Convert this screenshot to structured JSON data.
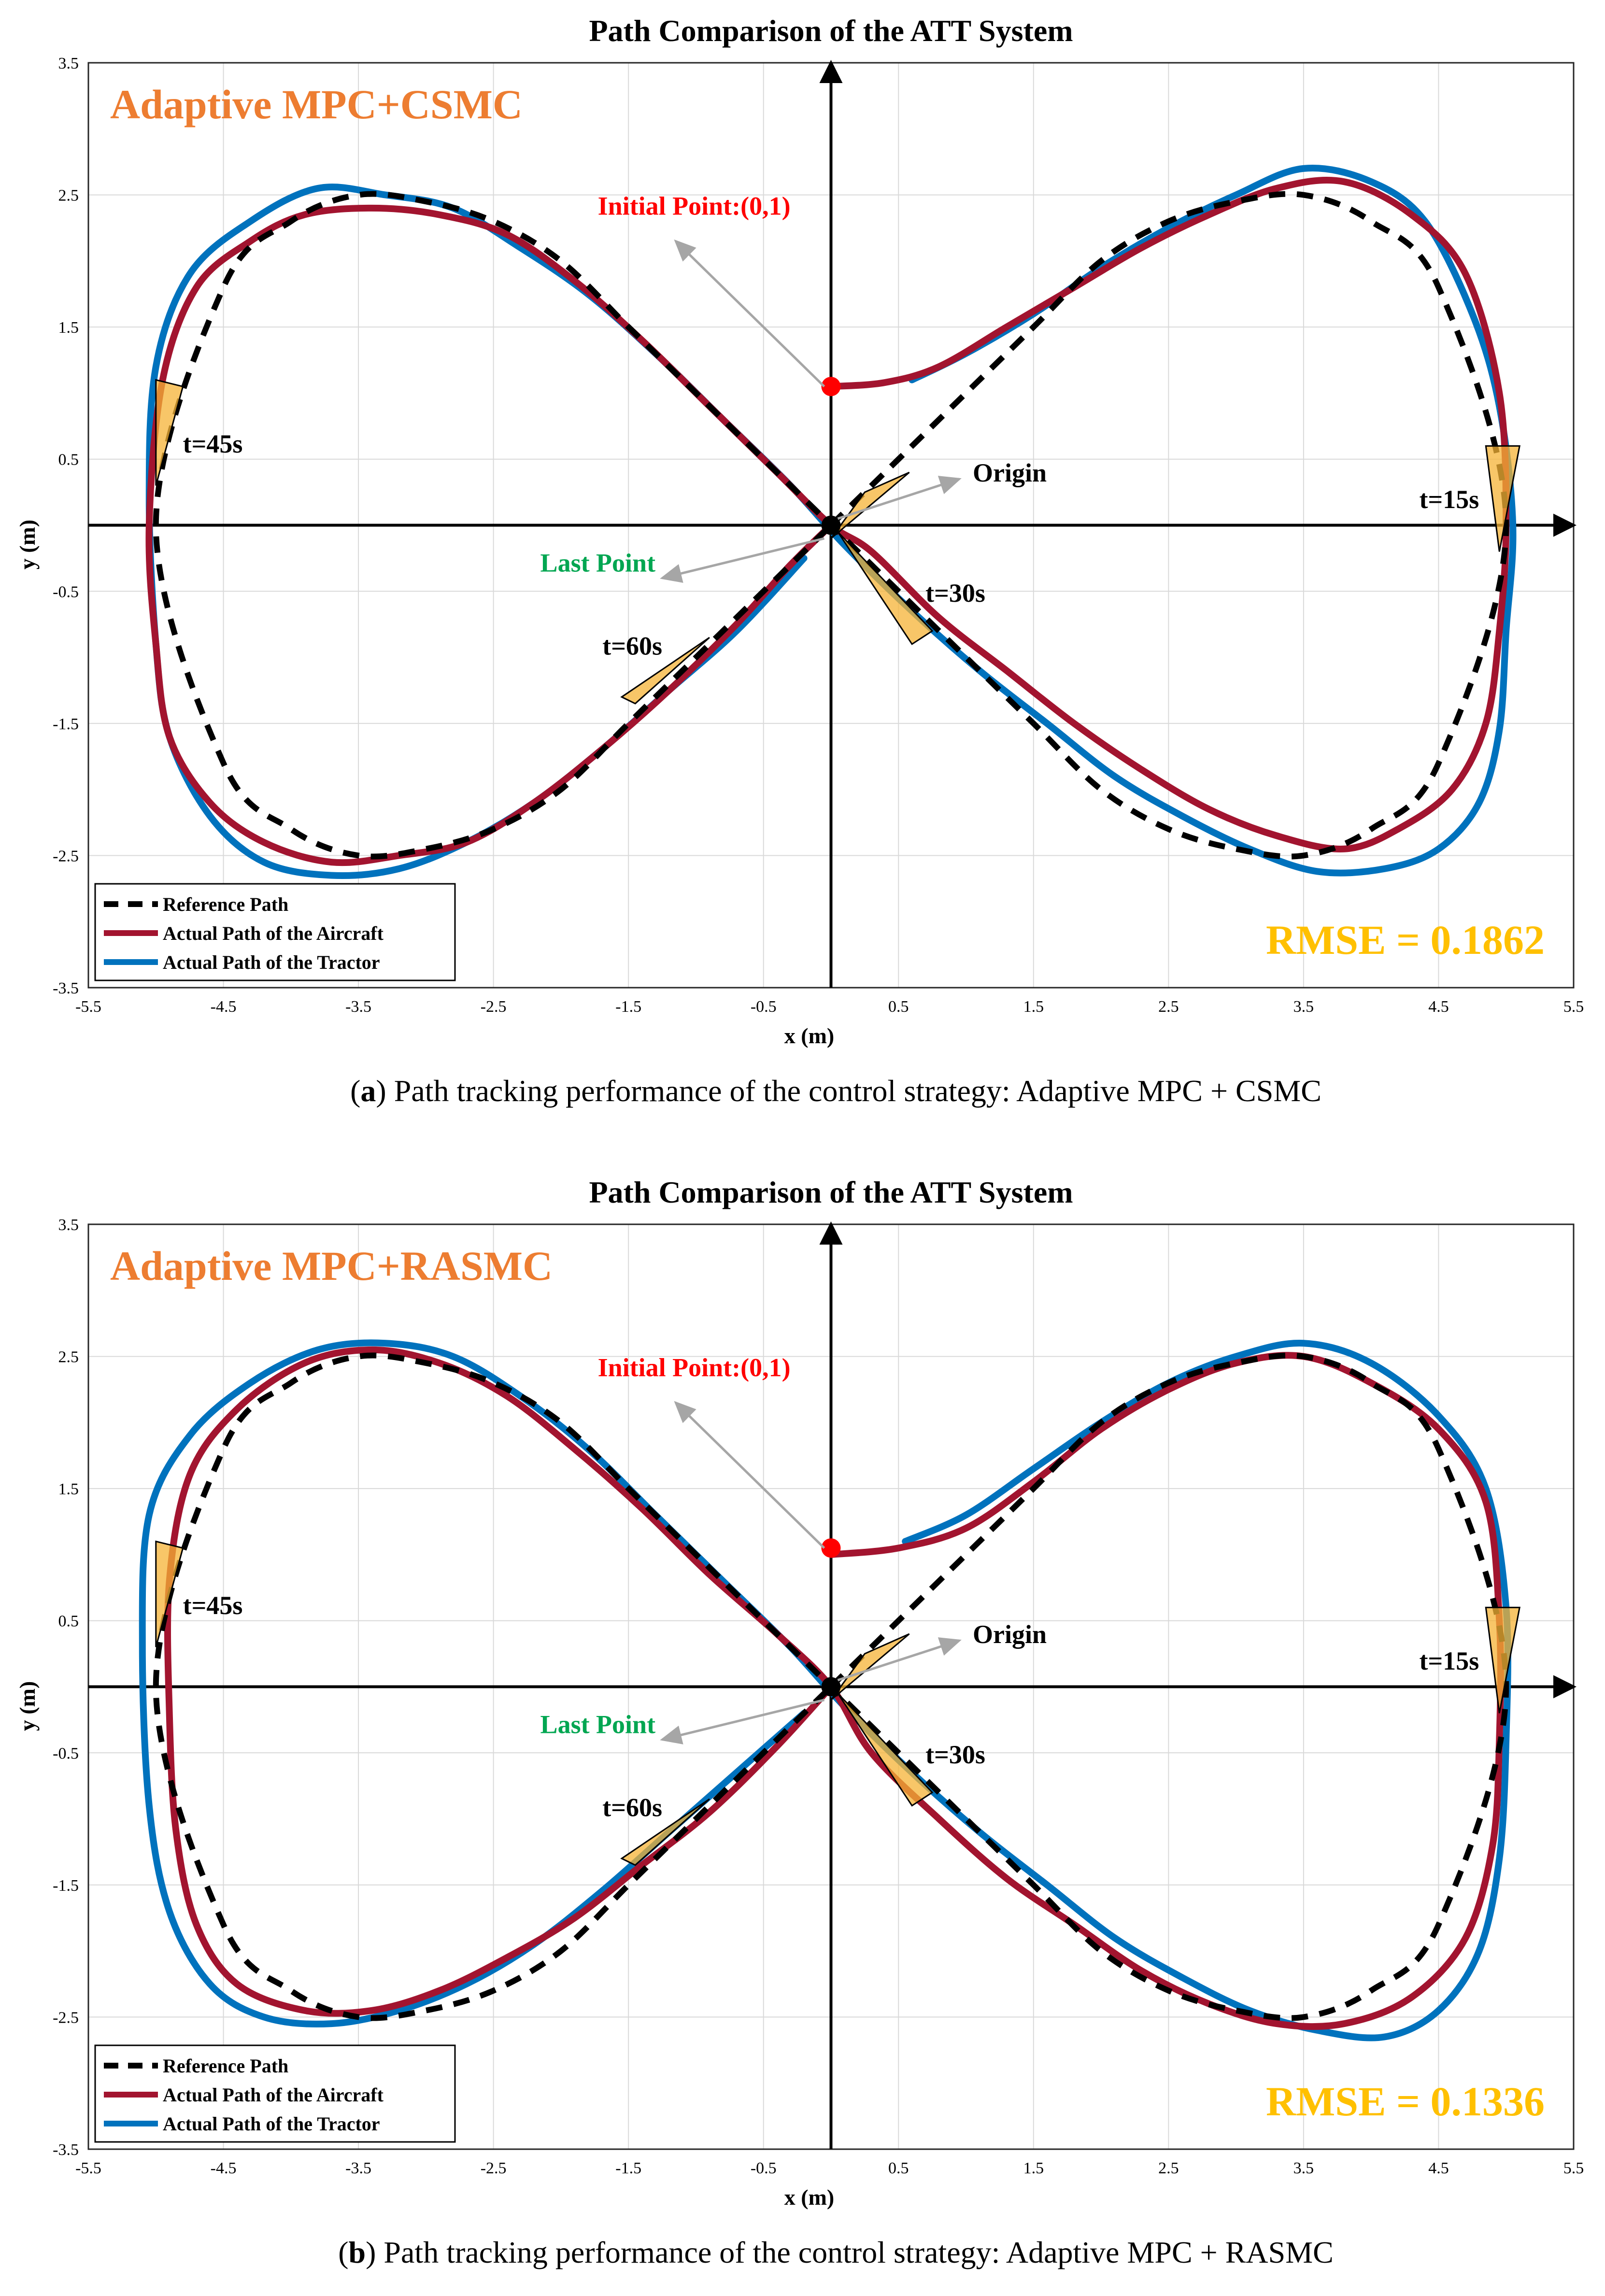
{
  "figure": {
    "colors": {
      "reference": "#000000",
      "aircraft": "#A2142F",
      "tractor": "#0072BD",
      "method_label": "#ED7D31",
      "rmse": "#FFC000",
      "initial_point": "#FF0000",
      "last_point": "#00A651",
      "origin_label": "#000000",
      "arrow": "#A6A6A6",
      "grid": "#D9D9D9",
      "trailer": "#F5B335"
    }
  },
  "chart_data": [
    {
      "type": "line",
      "title": "Path Comparison of the ATT System",
      "xlabel": "x (m)",
      "ylabel": "y (m)",
      "xlim": [
        -5.5,
        5.5
      ],
      "ylim": [
        -3.5,
        3.5
      ],
      "xticks": [
        -5.5,
        -4.5,
        -3.5,
        -2.5,
        -1.5,
        -0.5,
        0.5,
        1.5,
        2.5,
        3.5,
        4.5,
        5.5
      ],
      "yticks": [
        3.5,
        2.5,
        1.5,
        0.5,
        -0.5,
        -1.5,
        -2.5,
        -3.5
      ],
      "grid": true,
      "legend_position": "bottom-left",
      "method_label": "Adaptive MPC+CSMC",
      "rmse_label": "RMSE = 0.1862",
      "caption_tag": "a",
      "caption_text": " Path tracking performance of the control strategy: Adaptive MPC + CSMC",
      "series": [
        {
          "name": "Reference Path",
          "style": "dashed",
          "x": [
            0,
            0.5,
            1,
            1.5,
            2,
            2.5,
            3,
            3.5,
            4,
            4.5,
            5,
            4.5,
            4,
            3.5,
            3,
            2.5,
            2,
            1.5,
            1,
            0.5,
            0,
            -0.5,
            -1,
            -1.5,
            -2,
            -2.5,
            -3,
            -3.5,
            -4,
            -4.5,
            -5,
            -4.5,
            -4,
            -3.5,
            -3,
            -2.5,
            -2,
            -1.5,
            -1,
            -0.5,
            0
          ],
          "y": [
            0,
            0.5,
            1,
            1.5,
            2,
            2.3,
            2.45,
            2.5,
            2.3,
            1.8,
            0,
            -1.8,
            -2.3,
            -2.5,
            -2.45,
            -2.3,
            -2,
            -1.5,
            -1,
            -0.5,
            0,
            0.5,
            1,
            1.5,
            2,
            2.3,
            2.45,
            2.5,
            2.3,
            1.8,
            0,
            -1.8,
            -2.3,
            -2.5,
            -2.45,
            -2.3,
            -2,
            -1.5,
            -1,
            -0.5,
            0
          ]
        },
        {
          "name": "Actual Path of the Aircraft",
          "style": "solid",
          "x": [
            0,
            0.4,
            0.8,
            1.3,
            1.8,
            2.3,
            2.8,
            3.3,
            3.8,
            4.3,
            4.7,
            4.95,
            5.0,
            4.95,
            4.85,
            4.6,
            4.2,
            3.8,
            3.3,
            2.8,
            2.3,
            1.8,
            1.3,
            0.8,
            0.3,
            0,
            -0.4,
            -0.9,
            -1.4,
            -1.9,
            -2.4,
            -2.9,
            -3.4,
            -3.9,
            -4.3,
            -4.7,
            -4.95,
            -5.05,
            -5.0,
            -4.9,
            -4.6,
            -4.2,
            -3.7,
            -3.2,
            -2.7,
            -2.2,
            -1.7,
            -1.2,
            -0.7,
            -0.3,
            0
          ],
          "y": [
            1.05,
            1.08,
            1.2,
            1.5,
            1.8,
            2.1,
            2.35,
            2.55,
            2.6,
            2.35,
            1.9,
            1.0,
            0,
            -0.8,
            -1.5,
            -2.0,
            -2.3,
            -2.45,
            -2.35,
            -2.15,
            -1.85,
            -1.5,
            -1.1,
            -0.7,
            -0.2,
            0,
            0.4,
            0.9,
            1.4,
            1.85,
            2.2,
            2.35,
            2.4,
            2.35,
            2.15,
            1.8,
            1.1,
            0,
            -0.9,
            -1.6,
            -2.1,
            -2.4,
            -2.55,
            -2.5,
            -2.4,
            -2.1,
            -1.7,
            -1.25,
            -0.75,
            -0.3,
            0
          ]
        },
        {
          "name": "Actual Path of the Tractor",
          "style": "solid",
          "x": [
            0.6,
            1.0,
            1.5,
            2.0,
            2.5,
            3.0,
            3.5,
            4.0,
            4.4,
            4.75,
            4.95,
            5.05,
            5.0,
            4.95,
            4.8,
            4.5,
            4.1,
            3.6,
            3.1,
            2.6,
            2.1,
            1.6,
            1.1,
            0.6,
            0.1,
            -0.3,
            -0.8,
            -1.3,
            -1.8,
            -2.3,
            -2.8,
            -3.3,
            -3.8,
            -4.3,
            -4.75,
            -5.0,
            -5.05,
            -5.0,
            -4.9,
            -4.6,
            -4.2,
            -3.7,
            -3.2,
            -2.7,
            -2.2,
            -1.7,
            -1.2,
            -0.7,
            -0.2
          ],
          "y": [
            1.1,
            1.3,
            1.6,
            1.95,
            2.25,
            2.5,
            2.7,
            2.6,
            2.3,
            1.6,
            0.9,
            0,
            -0.8,
            -1.55,
            -2.1,
            -2.45,
            -2.6,
            -2.62,
            -2.45,
            -2.2,
            -1.9,
            -1.5,
            -1.1,
            -0.65,
            -0.15,
            0.3,
            0.8,
            1.3,
            1.75,
            2.1,
            2.4,
            2.5,
            2.55,
            2.3,
            1.9,
            1.2,
            0.2,
            -0.9,
            -1.6,
            -2.2,
            -2.55,
            -2.65,
            -2.6,
            -2.4,
            -2.1,
            -1.7,
            -1.25,
            -0.8,
            -0.25
          ]
        }
      ],
      "annotations": [
        {
          "text": "Initial Point:(0,1)",
          "role": "initial"
        },
        {
          "text": "Origin",
          "role": "origin"
        },
        {
          "text": "Last Point",
          "role": "last"
        },
        {
          "text": "t=15s",
          "role": "time"
        },
        {
          "text": "t=30s",
          "role": "time"
        },
        {
          "text": "t=45s",
          "role": "time"
        },
        {
          "text": "t=60s",
          "role": "time"
        }
      ]
    },
    {
      "type": "line",
      "title": "Path Comparison of the ATT System",
      "xlabel": "x (m)",
      "ylabel": "y (m)",
      "xlim": [
        -5.5,
        5.5
      ],
      "ylim": [
        -3.5,
        3.5
      ],
      "xticks": [
        -5.5,
        -4.5,
        -3.5,
        -2.5,
        -1.5,
        -0.5,
        0.5,
        1.5,
        2.5,
        3.5,
        4.5,
        5.5
      ],
      "yticks": [
        3.5,
        2.5,
        1.5,
        0.5,
        -0.5,
        -1.5,
        -2.5,
        -3.5
      ],
      "grid": true,
      "legend_position": "bottom-left",
      "method_label": "Adaptive MPC+RASMC",
      "rmse_label": "RMSE = 0.1336",
      "caption_tag": "b",
      "caption_text": " Path tracking performance of the control strategy: Adaptive MPC + RASMC",
      "series": [
        {
          "name": "Reference Path",
          "style": "dashed",
          "x": [
            0,
            0.5,
            1,
            1.5,
            2,
            2.5,
            3,
            3.5,
            4,
            4.5,
            5,
            4.5,
            4,
            3.5,
            3,
            2.5,
            2,
            1.5,
            1,
            0.5,
            0,
            -0.5,
            -1,
            -1.5,
            -2,
            -2.5,
            -3,
            -3.5,
            -4,
            -4.5,
            -5,
            -4.5,
            -4,
            -3.5,
            -3,
            -2.5,
            -2,
            -1.5,
            -1,
            -0.5,
            0
          ],
          "y": [
            0,
            0.5,
            1,
            1.5,
            2,
            2.3,
            2.45,
            2.5,
            2.3,
            1.8,
            0,
            -1.8,
            -2.3,
            -2.5,
            -2.45,
            -2.3,
            -2,
            -1.5,
            -1,
            -0.5,
            0,
            0.5,
            1,
            1.5,
            2,
            2.3,
            2.45,
            2.5,
            2.3,
            1.8,
            0,
            -1.8,
            -2.3,
            -2.5,
            -2.45,
            -2.3,
            -2,
            -1.5,
            -1,
            -0.5,
            0
          ]
        },
        {
          "name": "Actual Path of the Aircraft",
          "style": "solid",
          "x": [
            0,
            0.5,
            1.0,
            1.5,
            2.0,
            2.5,
            3.0,
            3.5,
            4.0,
            4.5,
            4.85,
            4.95,
            4.95,
            4.9,
            4.7,
            4.3,
            3.8,
            3.3,
            2.8,
            2.3,
            1.8,
            1.3,
            0.8,
            0.3,
            0,
            -0.4,
            -0.9,
            -1.4,
            -1.9,
            -2.4,
            -2.9,
            -3.4,
            -3.9,
            -4.4,
            -4.75,
            -4.9,
            -4.9,
            -4.85,
            -4.7,
            -4.4,
            -3.9,
            -3.4,
            -2.9,
            -2.4,
            -1.9,
            -1.4,
            -0.9,
            -0.4,
            0
          ],
          "y": [
            1.0,
            1.05,
            1.2,
            1.55,
            1.95,
            2.25,
            2.45,
            2.5,
            2.3,
            1.95,
            1.4,
            0.5,
            -0.4,
            -1.2,
            -1.9,
            -2.35,
            -2.55,
            -2.55,
            -2.4,
            -2.15,
            -1.8,
            -1.45,
            -1.0,
            -0.5,
            0,
            0.4,
            0.85,
            1.35,
            1.8,
            2.2,
            2.45,
            2.55,
            2.45,
            2.1,
            1.6,
            0.8,
            -0.2,
            -1.1,
            -1.8,
            -2.25,
            -2.45,
            -2.45,
            -2.3,
            -2.05,
            -1.75,
            -1.35,
            -0.95,
            -0.45,
            0
          ]
        },
        {
          "name": "Actual Path of the Tractor",
          "style": "solid",
          "x": [
            0.55,
            1.0,
            1.5,
            2.0,
            2.5,
            3.0,
            3.5,
            4.0,
            4.5,
            4.85,
            5.0,
            5.0,
            4.95,
            4.8,
            4.5,
            4.1,
            3.6,
            3.1,
            2.6,
            2.1,
            1.6,
            1.1,
            0.6,
            0.1,
            -0.3,
            -0.8,
            -1.3,
            -1.8,
            -2.3,
            -2.8,
            -3.3,
            -3.8,
            -4.3,
            -4.75,
            -5.05,
            -5.1,
            -5.05,
            -4.9,
            -4.6,
            -4.2,
            -3.7,
            -3.2,
            -2.7,
            -2.2,
            -1.7,
            -1.2,
            -0.7,
            -0.2
          ],
          "y": [
            1.1,
            1.3,
            1.65,
            2.0,
            2.3,
            2.5,
            2.6,
            2.45,
            2.05,
            1.5,
            0.6,
            -0.4,
            -1.3,
            -2.0,
            -2.45,
            -2.65,
            -2.6,
            -2.45,
            -2.2,
            -1.9,
            -1.5,
            -1.1,
            -0.65,
            -0.15,
            0.3,
            0.8,
            1.3,
            1.8,
            2.2,
            2.5,
            2.6,
            2.55,
            2.3,
            1.9,
            1.3,
            0.3,
            -0.9,
            -1.7,
            -2.25,
            -2.5,
            -2.55,
            -2.45,
            -2.25,
            -1.95,
            -1.55,
            -1.1,
            -0.65,
            -0.2
          ]
        }
      ],
      "annotations": [
        {
          "text": "Initial Point:(0,1)",
          "role": "initial"
        },
        {
          "text": "Origin",
          "role": "origin"
        },
        {
          "text": "Last Point",
          "role": "last"
        },
        {
          "text": "t=15s",
          "role": "time"
        },
        {
          "text": "t=30s",
          "role": "time"
        },
        {
          "text": "t=45s",
          "role": "time"
        },
        {
          "text": "t=60s",
          "role": "time"
        }
      ]
    }
  ]
}
